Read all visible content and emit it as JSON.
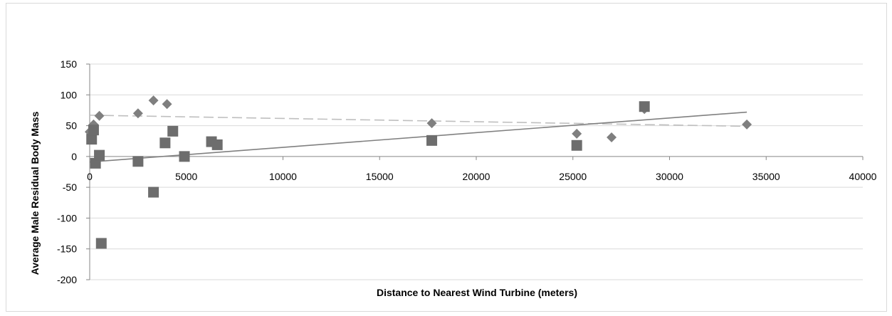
{
  "chart_data": {
    "type": "scatter",
    "title": "",
    "xlabel": "Distance to Nearest Wind Turbine (meters)",
    "ylabel": "Average Male Residual Body Mass",
    "xlim": [
      0,
      40000
    ],
    "ylim": [
      -200,
      150
    ],
    "x_ticks": [
      0,
      5000,
      10000,
      15000,
      20000,
      25000,
      30000,
      35000,
      40000
    ],
    "y_ticks": [
      -200,
      -150,
      -100,
      -50,
      0,
      50,
      100,
      150
    ],
    "grid": "horizontal",
    "legend": "none",
    "series": [
      {
        "marker": "diamond",
        "color": "#7f7f7f",
        "points": [
          {
            "x": 0,
            "y": 40
          },
          {
            "x": 200,
            "y": 52
          },
          {
            "x": 500,
            "y": 66
          },
          {
            "x": 2500,
            "y": 70
          },
          {
            "x": 3300,
            "y": 91
          },
          {
            "x": 4000,
            "y": 85
          },
          {
            "x": 17700,
            "y": 54
          },
          {
            "x": 25200,
            "y": 37
          },
          {
            "x": 27000,
            "y": 31
          },
          {
            "x": 28700,
            "y": 77
          },
          {
            "x": 34000,
            "y": 52
          }
        ],
        "trendline": {
          "style": "dashed",
          "color": "#bfbfbf",
          "x": [
            0,
            34000
          ],
          "y": [
            67,
            49
          ]
        }
      },
      {
        "marker": "square",
        "color": "#6d6d6d",
        "points": [
          {
            "x": 100,
            "y": 28
          },
          {
            "x": 200,
            "y": 43
          },
          {
            "x": 300,
            "y": -11
          },
          {
            "x": 500,
            "y": 2
          },
          {
            "x": 600,
            "y": -141
          },
          {
            "x": 2500,
            "y": -8
          },
          {
            "x": 3300,
            "y": -58
          },
          {
            "x": 3900,
            "y": 22
          },
          {
            "x": 4300,
            "y": 41
          },
          {
            "x": 4900,
            "y": 0
          },
          {
            "x": 6300,
            "y": 24
          },
          {
            "x": 6600,
            "y": 19
          },
          {
            "x": 17700,
            "y": 26
          },
          {
            "x": 25200,
            "y": 18
          },
          {
            "x": 28700,
            "y": 81
          }
        ],
        "trendline": {
          "style": "solid",
          "color": "#808080",
          "x": [
            0,
            34000
          ],
          "y": [
            -9,
            72
          ]
        }
      }
    ]
  },
  "colors": {
    "gridline": "#d9d9d9",
    "axis": "#868686",
    "frame": "#d9d9d9"
  }
}
